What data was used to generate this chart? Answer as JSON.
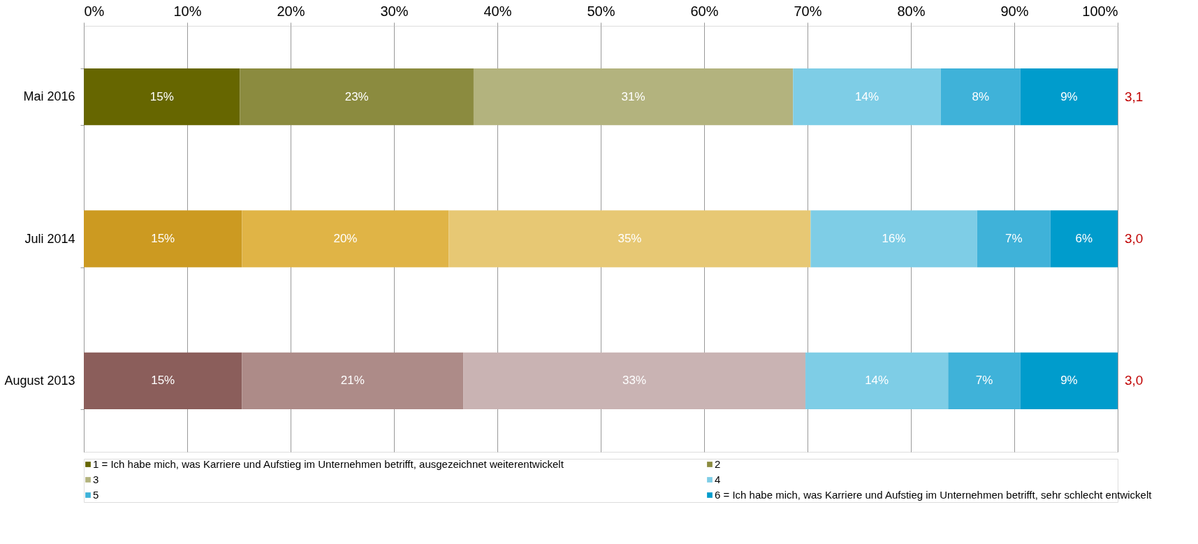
{
  "chart_data": {
    "type": "bar",
    "orientation": "horizontal",
    "stacked": true,
    "categories": [
      "Mai 2016",
      "Juli 2014",
      "August 2013"
    ],
    "series": [
      {
        "name": "1 = Ich habe mich, was Karriere und Aufstieg im Unternehmen betrifft, ausgezeichnet weiterentwickelt",
        "color": "#666600",
        "colors": [
          "#666600",
          "#cc9a21",
          "#8b5e5b"
        ],
        "values": [
          15.1,
          15.3,
          15.3
        ],
        "value_labels": [
          "15%",
          "15%",
          "15%"
        ]
      },
      {
        "name": "2",
        "color": "#8b8b3f",
        "colors": [
          "#8b8b3f",
          "#e0b446",
          "#ad8b88"
        ],
        "values": [
          22.6,
          20.0,
          21.4
        ],
        "value_labels": [
          "23%",
          "20%",
          "21%"
        ]
      },
      {
        "name": "3",
        "color": "#b3b37e",
        "colors": [
          "#b3b37e",
          "#e7c874",
          "#c9b3b3"
        ],
        "values": [
          30.9,
          35.0,
          33.1
        ],
        "value_labels": [
          "31%",
          "35%",
          "33%"
        ]
      },
      {
        "name": "4",
        "color": "#7ecde6",
        "colors": [
          "#7ecde6",
          "#7ecde6",
          "#7ecde6"
        ],
        "values": [
          14.3,
          16.1,
          13.8
        ],
        "value_labels": [
          "14%",
          "16%",
          "14%"
        ]
      },
      {
        "name": "5",
        "color": "#3fb2d9",
        "colors": [
          "#3fb2d9",
          "#3fb2d9",
          "#3fb2d9"
        ],
        "values": [
          7.7,
          7.1,
          7.0
        ],
        "value_labels": [
          "8%",
          "7%",
          "7%"
        ]
      },
      {
        "name": "6 = Ich habe mich, was Karriere und Aufstieg im Unternehmen betrifft, sehr schlecht entwickelt",
        "color": "#009ccc",
        "colors": [
          "#009ccc",
          "#009ccc",
          "#009ccc"
        ],
        "values": [
          9.4,
          6.5,
          9.4
        ],
        "value_labels": [
          "9%",
          "6%",
          "9%"
        ]
      }
    ],
    "xlim": [
      0,
      100
    ],
    "xticks": [
      {
        "value": 0,
        "label": "0%"
      },
      {
        "value": 10,
        "label": "10%"
      },
      {
        "value": 20,
        "label": "20%"
      },
      {
        "value": 30,
        "label": "30%"
      },
      {
        "value": 40,
        "label": "40%"
      },
      {
        "value": 50,
        "label": "50%"
      },
      {
        "value": 60,
        "label": "60%"
      },
      {
        "value": 70,
        "label": "70%"
      },
      {
        "value": 80,
        "label": "80%"
      },
      {
        "value": 90,
        "label": "90%"
      },
      {
        "value": 100,
        "label": "100%"
      }
    ],
    "grid": "x",
    "legend": "bottom",
    "annotations": [
      "3,1",
      "3,0",
      "3,0"
    ]
  }
}
